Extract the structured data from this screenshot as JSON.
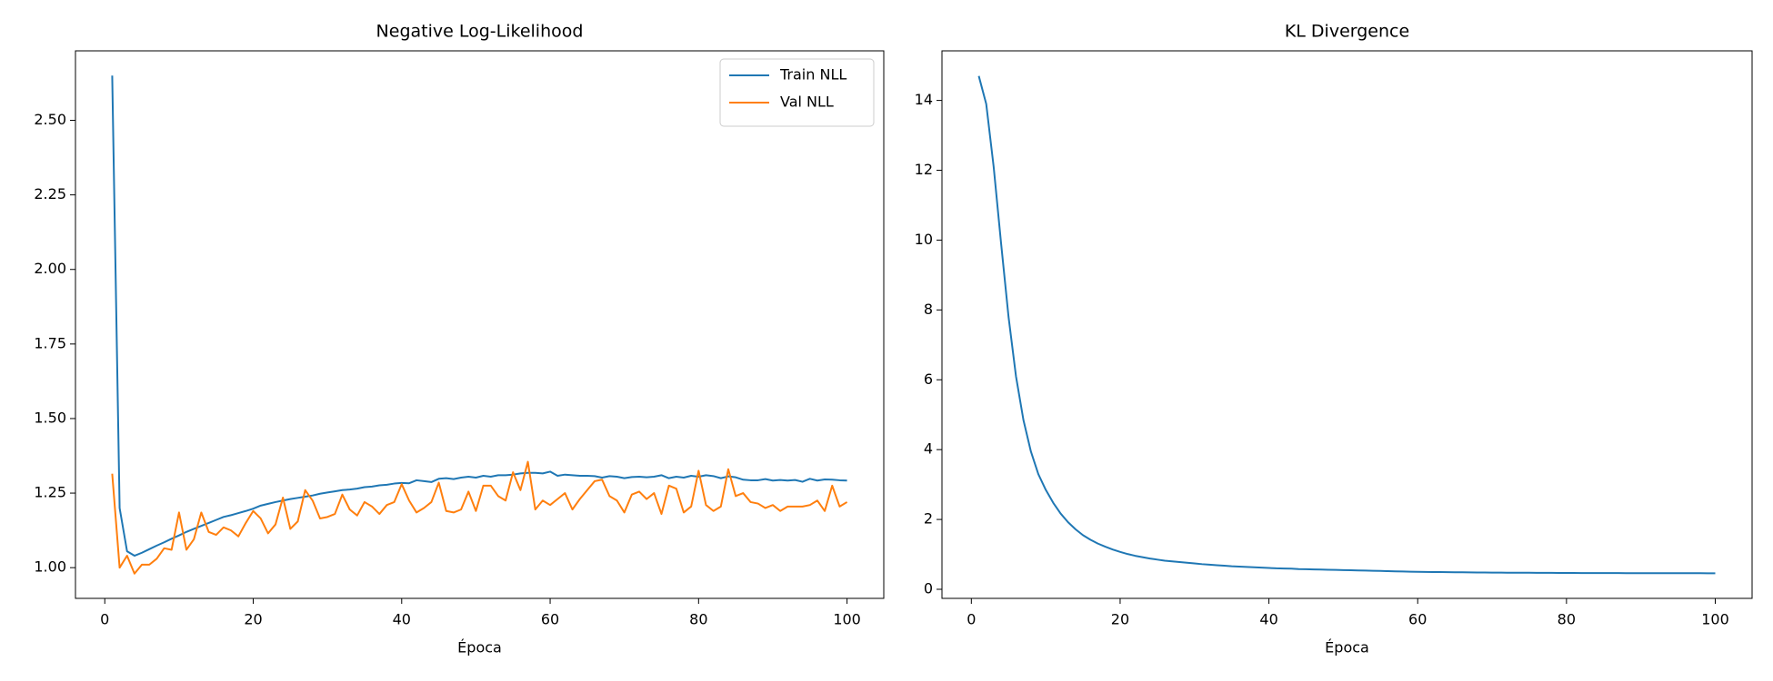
{
  "chart_data": [
    {
      "type": "line",
      "title": "Negative Log-Likelihood",
      "x_label": "Época",
      "x": [
        1,
        2,
        3,
        4,
        5,
        6,
        7,
        8,
        9,
        10,
        11,
        12,
        13,
        14,
        15,
        16,
        17,
        18,
        19,
        20,
        21,
        22,
        23,
        24,
        25,
        26,
        27,
        28,
        29,
        30,
        31,
        32,
        33,
        34,
        35,
        36,
        37,
        38,
        39,
        40,
        41,
        42,
        43,
        44,
        45,
        46,
        47,
        48,
        49,
        50,
        51,
        52,
        53,
        54,
        55,
        56,
        57,
        58,
        59,
        60,
        61,
        62,
        63,
        64,
        65,
        66,
        67,
        68,
        69,
        70,
        71,
        72,
        73,
        74,
        75,
        76,
        77,
        78,
        79,
        80,
        81,
        82,
        83,
        84,
        85,
        86,
        87,
        88,
        89,
        90,
        91,
        92,
        93,
        94,
        95,
        96,
        97,
        98,
        99,
        100
      ],
      "series": [
        {
          "name": "Train NLL",
          "color": "#1f77b4",
          "values": [
            2.65,
            1.2,
            1.055,
            1.04,
            1.05,
            1.062,
            1.074,
            1.085,
            1.097,
            1.108,
            1.12,
            1.13,
            1.14,
            1.15,
            1.16,
            1.17,
            1.176,
            1.183,
            1.19,
            1.198,
            1.208,
            1.214,
            1.22,
            1.225,
            1.23,
            1.234,
            1.238,
            1.242,
            1.248,
            1.252,
            1.256,
            1.26,
            1.262,
            1.265,
            1.27,
            1.272,
            1.276,
            1.278,
            1.282,
            1.284,
            1.283,
            1.293,
            1.29,
            1.287,
            1.298,
            1.3,
            1.297,
            1.302,
            1.305,
            1.302,
            1.308,
            1.305,
            1.31,
            1.31,
            1.312,
            1.316,
            1.318,
            1.318,
            1.316,
            1.322,
            1.308,
            1.312,
            1.31,
            1.308,
            1.308,
            1.307,
            1.302,
            1.307,
            1.305,
            1.3,
            1.304,
            1.305,
            1.303,
            1.305,
            1.31,
            1.3,
            1.305,
            1.302,
            1.308,
            1.305,
            1.31,
            1.307,
            1.3,
            1.306,
            1.303,
            1.295,
            1.293,
            1.293,
            1.297,
            1.292,
            1.294,
            1.292,
            1.294,
            1.288,
            1.298,
            1.292,
            1.296,
            1.295,
            1.293,
            1.292
          ]
        },
        {
          "name": "Val NLL",
          "color": "#ff7f0e",
          "values": [
            1.315,
            1.0,
            1.04,
            0.98,
            1.01,
            1.01,
            1.03,
            1.065,
            1.06,
            1.185,
            1.06,
            1.095,
            1.185,
            1.12,
            1.11,
            1.135,
            1.125,
            1.105,
            1.15,
            1.19,
            1.165,
            1.115,
            1.145,
            1.235,
            1.13,
            1.155,
            1.26,
            1.225,
            1.165,
            1.17,
            1.18,
            1.245,
            1.195,
            1.175,
            1.22,
            1.205,
            1.18,
            1.21,
            1.22,
            1.28,
            1.225,
            1.185,
            1.2,
            1.22,
            1.285,
            1.19,
            1.185,
            1.195,
            1.255,
            1.19,
            1.275,
            1.275,
            1.24,
            1.225,
            1.32,
            1.26,
            1.355,
            1.195,
            1.225,
            1.21,
            1.23,
            1.25,
            1.195,
            1.23,
            1.26,
            1.29,
            1.295,
            1.24,
            1.225,
            1.185,
            1.245,
            1.255,
            1.23,
            1.25,
            1.18,
            1.275,
            1.265,
            1.185,
            1.205,
            1.325,
            1.21,
            1.19,
            1.205,
            1.33,
            1.24,
            1.25,
            1.22,
            1.215,
            1.2,
            1.21,
            1.19,
            1.205,
            1.205,
            1.205,
            1.21,
            1.225,
            1.19,
            1.275,
            1.205,
            1.22
          ]
        }
      ],
      "xlim": [
        -3.95,
        104.95
      ],
      "xticks": [
        0,
        20,
        40,
        60,
        80,
        100
      ],
      "ylim": [
        0.897,
        2.733
      ],
      "yticks": [
        {
          "value": 1,
          "label": "1.00"
        },
        {
          "value": 1.25,
          "label": "1.25"
        },
        {
          "value": 1.5,
          "label": "1.50"
        },
        {
          "value": 1.75,
          "label": "1.75"
        },
        {
          "value": 2,
          "label": "2.00"
        },
        {
          "value": 2.25,
          "label": "2.25"
        },
        {
          "value": 2.5,
          "label": "2.50"
        }
      ],
      "legend": "upper right"
    },
    {
      "type": "line",
      "title": "KL Divergence",
      "x_label": "Época",
      "x": [
        1,
        2,
        3,
        4,
        5,
        6,
        7,
        8,
        9,
        10,
        11,
        12,
        13,
        14,
        15,
        16,
        17,
        18,
        19,
        20,
        21,
        22,
        23,
        24,
        25,
        26,
        27,
        28,
        29,
        30,
        31,
        32,
        33,
        34,
        35,
        36,
        37,
        38,
        39,
        40,
        41,
        42,
        43,
        44,
        45,
        46,
        47,
        48,
        49,
        50,
        51,
        52,
        53,
        54,
        55,
        56,
        57,
        58,
        59,
        60,
        61,
        62,
        63,
        64,
        65,
        66,
        67,
        68,
        69,
        70,
        71,
        72,
        73,
        74,
        75,
        76,
        77,
        78,
        79,
        80,
        81,
        82,
        83,
        84,
        85,
        86,
        87,
        88,
        89,
        90,
        91,
        92,
        93,
        94,
        95,
        96,
        97,
        98,
        99,
        100
      ],
      "series": [
        {
          "color": "#1f77b4",
          "values": [
            14.7,
            13.9,
            12.1,
            9.9,
            7.8,
            6.1,
            4.85,
            3.95,
            3.3,
            2.85,
            2.48,
            2.17,
            1.92,
            1.72,
            1.55,
            1.42,
            1.31,
            1.22,
            1.14,
            1.07,
            1.01,
            0.96,
            0.92,
            0.88,
            0.85,
            0.82,
            0.8,
            0.78,
            0.76,
            0.74,
            0.72,
            0.705,
            0.69,
            0.675,
            0.66,
            0.65,
            0.64,
            0.63,
            0.62,
            0.61,
            0.6,
            0.595,
            0.59,
            0.58,
            0.575,
            0.57,
            0.565,
            0.56,
            0.555,
            0.55,
            0.545,
            0.54,
            0.535,
            0.53,
            0.525,
            0.52,
            0.515,
            0.51,
            0.505,
            0.5,
            0.498,
            0.495,
            0.493,
            0.49,
            0.488,
            0.486,
            0.484,
            0.482,
            0.48,
            0.478,
            0.477,
            0.476,
            0.475,
            0.474,
            0.473,
            0.472,
            0.471,
            0.47,
            0.469,
            0.468,
            0.467,
            0.466,
            0.466,
            0.465,
            0.465,
            0.464,
            0.464,
            0.463,
            0.463,
            0.462,
            0.462,
            0.461,
            0.461,
            0.461,
            0.46,
            0.46,
            0.46,
            0.46,
            0.459,
            0.459
          ]
        }
      ],
      "xlim": [
        -3.95,
        104.95
      ],
      "xticks": [
        0,
        20,
        40,
        60,
        80,
        100
      ],
      "ylim": [
        -0.26,
        15.42
      ],
      "yticks": [
        0,
        2,
        4,
        6,
        8,
        10,
        12,
        14
      ]
    }
  ]
}
